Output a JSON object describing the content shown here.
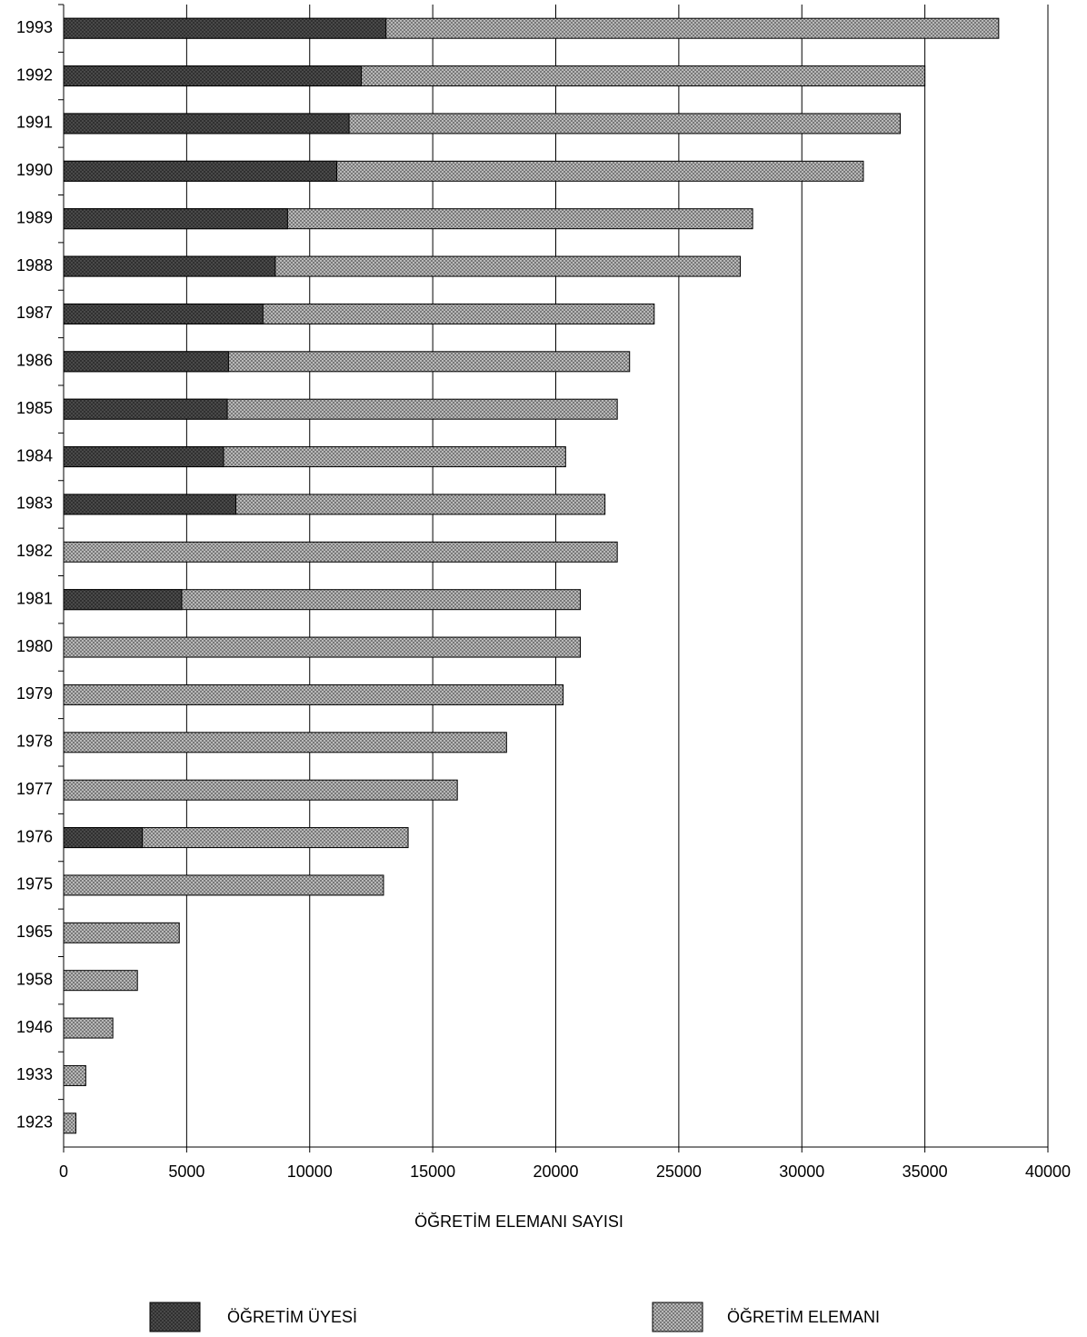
{
  "chart_data": {
    "type": "bar",
    "orientation": "horizontal",
    "overlap": true,
    "x_label": "ÖĞRETİM  ELEMANI  SAYISI",
    "categories": [
      "1993",
      "1992",
      "1991",
      "1990",
      "1989",
      "1988",
      "1987",
      "1986",
      "1985",
      "1984",
      "1983",
      "1982",
      "1981",
      "1980",
      "1979",
      "1978",
      "1977",
      "1976",
      "1975",
      "1965",
      "1958",
      "1946",
      "1933",
      "1923"
    ],
    "series": [
      {
        "name": "ÖĞRETİM ELEMANI",
        "color": "#b8b8b8",
        "values": [
          38000,
          35000,
          34000,
          32500,
          28000,
          27500,
          24000,
          23000,
          22500,
          20400,
          22000,
          22500,
          21000,
          21000,
          20300,
          18000,
          16000,
          14000,
          13000,
          4700,
          3000,
          2000,
          900,
          500
        ]
      },
      {
        "name": "ÖĞRETİM ÜYESİ",
        "color": "#4a4a4a",
        "values": [
          13100,
          12100,
          11600,
          11100,
          9100,
          8600,
          8100,
          6700,
          6650,
          6500,
          7000,
          null,
          4800,
          null,
          null,
          null,
          null,
          3200,
          null,
          null,
          null,
          null,
          null,
          null
        ]
      }
    ],
    "xlim": [
      0,
      40000
    ],
    "xticks": [
      0,
      5000,
      10000,
      15000,
      20000,
      25000,
      30000,
      35000,
      40000
    ],
    "grid": true
  }
}
